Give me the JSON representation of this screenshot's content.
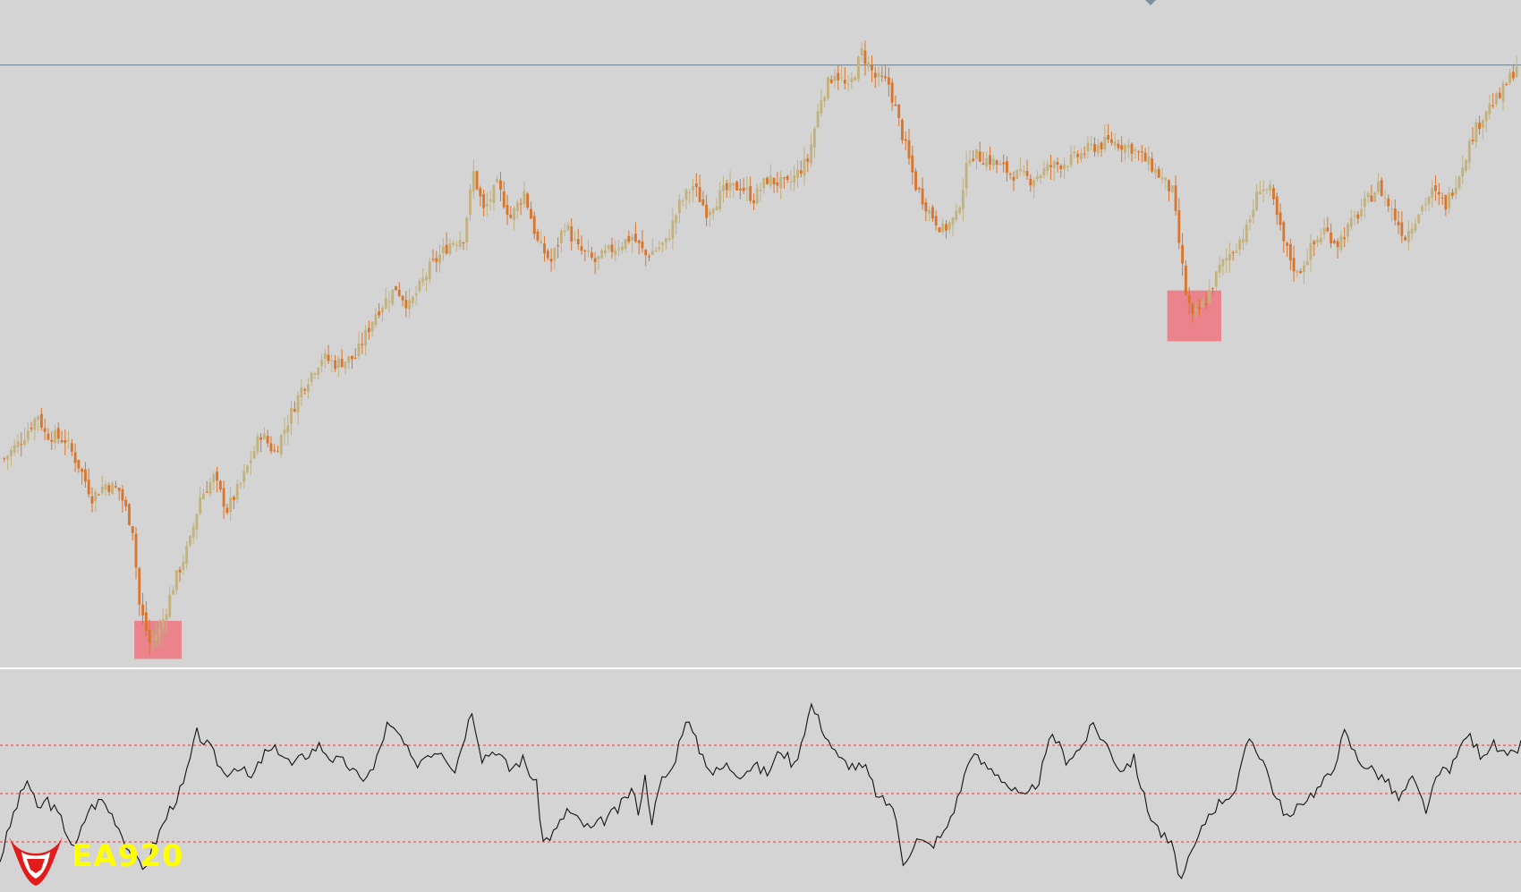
{
  "colors": {
    "background": "#d4d4d4",
    "bull_candle": "#c2b27e",
    "bear_candle": "#d9762e",
    "highlight_box": "#ec7a84",
    "panel_divider": "#ffffff",
    "resistance_line": "#7d8f9e",
    "oscillator_line": "#111111",
    "level_line": "#e03a3a",
    "logo_red": "#e21b1b",
    "logo_text": "#ffff00"
  },
  "logo": {
    "text": "EA920",
    "icon": "bull-head-icon"
  },
  "chart_data": [
    {
      "type": "candlestick",
      "title": "",
      "xlabel": "",
      "ylabel": "",
      "ylim": [
        0,
        100
      ],
      "grid": false,
      "horizontal_line": 94,
      "anchors": [
        {
          "i": 0,
          "v": 32
        },
        {
          "i": 5,
          "v": 35
        },
        {
          "i": 10,
          "v": 39
        },
        {
          "i": 12,
          "v": 36
        },
        {
          "i": 18,
          "v": 35
        },
        {
          "i": 22,
          "v": 31
        },
        {
          "i": 26,
          "v": 26
        },
        {
          "i": 30,
          "v": 28
        },
        {
          "i": 34,
          "v": 27
        },
        {
          "i": 38,
          "v": 21
        },
        {
          "i": 40,
          "v": 9
        },
        {
          "i": 43,
          "v": 3
        },
        {
          "i": 46,
          "v": 5
        },
        {
          "i": 50,
          "v": 12
        },
        {
          "i": 55,
          "v": 19
        },
        {
          "i": 58,
          "v": 26
        },
        {
          "i": 62,
          "v": 29
        },
        {
          "i": 66,
          "v": 24
        },
        {
          "i": 70,
          "v": 28
        },
        {
          "i": 76,
          "v": 36
        },
        {
          "i": 80,
          "v": 33
        },
        {
          "i": 84,
          "v": 38
        },
        {
          "i": 88,
          "v": 43
        },
        {
          "i": 94,
          "v": 48
        },
        {
          "i": 98,
          "v": 47
        },
        {
          "i": 104,
          "v": 48
        },
        {
          "i": 110,
          "v": 55
        },
        {
          "i": 116,
          "v": 59
        },
        {
          "i": 120,
          "v": 56
        },
        {
          "i": 126,
          "v": 62
        },
        {
          "i": 132,
          "v": 66
        },
        {
          "i": 136,
          "v": 67
        },
        {
          "i": 139,
          "v": 77
        },
        {
          "i": 142,
          "v": 71
        },
        {
          "i": 146,
          "v": 75
        },
        {
          "i": 150,
          "v": 70
        },
        {
          "i": 154,
          "v": 74
        },
        {
          "i": 158,
          "v": 66
        },
        {
          "i": 162,
          "v": 63
        },
        {
          "i": 166,
          "v": 69
        },
        {
          "i": 170,
          "v": 65
        },
        {
          "i": 175,
          "v": 63
        },
        {
          "i": 180,
          "v": 65
        },
        {
          "i": 186,
          "v": 67
        },
        {
          "i": 190,
          "v": 64
        },
        {
          "i": 196,
          "v": 66
        },
        {
          "i": 200,
          "v": 72
        },
        {
          "i": 204,
          "v": 75
        },
        {
          "i": 208,
          "v": 71
        },
        {
          "i": 213,
          "v": 74
        },
        {
          "i": 218,
          "v": 75
        },
        {
          "i": 222,
          "v": 73
        },
        {
          "i": 226,
          "v": 76
        },
        {
          "i": 232,
          "v": 75
        },
        {
          "i": 238,
          "v": 79
        },
        {
          "i": 242,
          "v": 89
        },
        {
          "i": 246,
          "v": 93
        },
        {
          "i": 250,
          "v": 90
        },
        {
          "i": 254,
          "v": 96
        },
        {
          "i": 258,
          "v": 92
        },
        {
          "i": 262,
          "v": 91
        },
        {
          "i": 266,
          "v": 83
        },
        {
          "i": 270,
          "v": 75
        },
        {
          "i": 274,
          "v": 71
        },
        {
          "i": 278,
          "v": 68
        },
        {
          "i": 282,
          "v": 70
        },
        {
          "i": 286,
          "v": 80
        },
        {
          "i": 292,
          "v": 79
        },
        {
          "i": 298,
          "v": 77
        },
        {
          "i": 304,
          "v": 76
        },
        {
          "i": 310,
          "v": 78
        },
        {
          "i": 316,
          "v": 79
        },
        {
          "i": 322,
          "v": 81
        },
        {
          "i": 328,
          "v": 82
        },
        {
          "i": 334,
          "v": 81
        },
        {
          "i": 340,
          "v": 78
        },
        {
          "i": 346,
          "v": 74
        },
        {
          "i": 350,
          "v": 58
        },
        {
          "i": 352,
          "v": 54
        },
        {
          "i": 356,
          "v": 57
        },
        {
          "i": 360,
          "v": 62
        },
        {
          "i": 364,
          "v": 65
        },
        {
          "i": 368,
          "v": 68
        },
        {
          "i": 372,
          "v": 75
        },
        {
          "i": 375,
          "v": 74
        },
        {
          "i": 379,
          "v": 66
        },
        {
          "i": 383,
          "v": 61
        },
        {
          "i": 387,
          "v": 65
        },
        {
          "i": 391,
          "v": 68
        },
        {
          "i": 395,
          "v": 66
        },
        {
          "i": 399,
          "v": 69
        },
        {
          "i": 403,
          "v": 72
        },
        {
          "i": 407,
          "v": 75
        },
        {
          "i": 411,
          "v": 71
        },
        {
          "i": 415,
          "v": 67
        },
        {
          "i": 419,
          "v": 71
        },
        {
          "i": 423,
          "v": 74
        },
        {
          "i": 427,
          "v": 72
        },
        {
          "i": 431,
          "v": 77
        },
        {
          "i": 435,
          "v": 83
        },
        {
          "i": 439,
          "v": 87
        },
        {
          "i": 443,
          "v": 89
        },
        {
          "i": 448,
          "v": 94
        }
      ],
      "highlights": [
        {
          "from_index": 39,
          "to_index": 52,
          "low": 0.5,
          "high": 6.5
        },
        {
          "from_index": 345,
          "to_index": 360,
          "low": 50.5,
          "high": 58.5
        }
      ]
    },
    {
      "type": "line",
      "title": "",
      "xlabel": "",
      "ylabel": "",
      "ylim": [
        0,
        100
      ],
      "levels": [
        24,
        48,
        72
      ],
      "anchors": [
        {
          "i": 0,
          "v": 15
        },
        {
          "i": 4,
          "v": 38
        },
        {
          "i": 8,
          "v": 55
        },
        {
          "i": 11,
          "v": 40
        },
        {
          "i": 14,
          "v": 45
        },
        {
          "i": 18,
          "v": 35
        },
        {
          "i": 22,
          "v": 20
        },
        {
          "i": 26,
          "v": 40
        },
        {
          "i": 30,
          "v": 45
        },
        {
          "i": 34,
          "v": 35
        },
        {
          "i": 38,
          "v": 20
        },
        {
          "i": 42,
          "v": 10
        },
        {
          "i": 46,
          "v": 25
        },
        {
          "i": 50,
          "v": 40
        },
        {
          "i": 54,
          "v": 52
        },
        {
          "i": 58,
          "v": 78
        },
        {
          "i": 62,
          "v": 70
        },
        {
          "i": 66,
          "v": 58
        },
        {
          "i": 70,
          "v": 62
        },
        {
          "i": 74,
          "v": 55
        },
        {
          "i": 78,
          "v": 68
        },
        {
          "i": 82,
          "v": 70
        },
        {
          "i": 86,
          "v": 62
        },
        {
          "i": 90,
          "v": 67
        },
        {
          "i": 94,
          "v": 72
        },
        {
          "i": 98,
          "v": 65
        },
        {
          "i": 102,
          "v": 63
        },
        {
          "i": 106,
          "v": 55
        },
        {
          "i": 110,
          "v": 60
        },
        {
          "i": 114,
          "v": 82
        },
        {
          "i": 118,
          "v": 76
        },
        {
          "i": 122,
          "v": 62
        },
        {
          "i": 126,
          "v": 68
        },
        {
          "i": 130,
          "v": 70
        },
        {
          "i": 134,
          "v": 60
        },
        {
          "i": 139,
          "v": 90
        },
        {
          "i": 142,
          "v": 66
        },
        {
          "i": 146,
          "v": 70
        },
        {
          "i": 150,
          "v": 60
        },
        {
          "i": 154,
          "v": 65
        },
        {
          "i": 158,
          "v": 52
        },
        {
          "i": 160,
          "v": 24
        },
        {
          "i": 164,
          "v": 30
        },
        {
          "i": 167,
          "v": 40
        },
        {
          "i": 170,
          "v": 35
        },
        {
          "i": 174,
          "v": 30
        },
        {
          "i": 178,
          "v": 35
        },
        {
          "i": 182,
          "v": 40
        },
        {
          "i": 186,
          "v": 50
        },
        {
          "i": 188,
          "v": 40
        },
        {
          "i": 190,
          "v": 56
        },
        {
          "i": 192,
          "v": 35
        },
        {
          "i": 195,
          "v": 55
        },
        {
          "i": 198,
          "v": 60
        },
        {
          "i": 202,
          "v": 86
        },
        {
          "i": 206,
          "v": 70
        },
        {
          "i": 210,
          "v": 58
        },
        {
          "i": 214,
          "v": 62
        },
        {
          "i": 218,
          "v": 58
        },
        {
          "i": 222,
          "v": 62
        },
        {
          "i": 226,
          "v": 58
        },
        {
          "i": 230,
          "v": 70
        },
        {
          "i": 234,
          "v": 62
        },
        {
          "i": 239,
          "v": 92
        },
        {
          "i": 243,
          "v": 78
        },
        {
          "i": 247,
          "v": 65
        },
        {
          "i": 251,
          "v": 62
        },
        {
          "i": 255,
          "v": 60
        },
        {
          "i": 259,
          "v": 45
        },
        {
          "i": 263,
          "v": 42
        },
        {
          "i": 266,
          "v": 14
        },
        {
          "i": 270,
          "v": 25
        },
        {
          "i": 274,
          "v": 22
        },
        {
          "i": 278,
          "v": 28
        },
        {
          "i": 282,
          "v": 45
        },
        {
          "i": 286,
          "v": 68
        },
        {
          "i": 290,
          "v": 62
        },
        {
          "i": 294,
          "v": 58
        },
        {
          "i": 298,
          "v": 50
        },
        {
          "i": 302,
          "v": 45
        },
        {
          "i": 306,
          "v": 55
        },
        {
          "i": 310,
          "v": 78
        },
        {
          "i": 314,
          "v": 65
        },
        {
          "i": 318,
          "v": 70
        },
        {
          "i": 322,
          "v": 82
        },
        {
          "i": 326,
          "v": 72
        },
        {
          "i": 330,
          "v": 60
        },
        {
          "i": 334,
          "v": 65
        },
        {
          "i": 338,
          "v": 40
        },
        {
          "i": 342,
          "v": 28
        },
        {
          "i": 345,
          "v": 22
        },
        {
          "i": 348,
          "v": 5
        },
        {
          "i": 352,
          "v": 22
        },
        {
          "i": 356,
          "v": 38
        },
        {
          "i": 360,
          "v": 45
        },
        {
          "i": 364,
          "v": 50
        },
        {
          "i": 368,
          "v": 76
        },
        {
          "i": 372,
          "v": 65
        },
        {
          "i": 376,
          "v": 45
        },
        {
          "i": 380,
          "v": 35
        },
        {
          "i": 384,
          "v": 45
        },
        {
          "i": 388,
          "v": 50
        },
        {
          "i": 392,
          "v": 58
        },
        {
          "i": 396,
          "v": 78
        },
        {
          "i": 400,
          "v": 65
        },
        {
          "i": 404,
          "v": 60
        },
        {
          "i": 408,
          "v": 55
        },
        {
          "i": 412,
          "v": 45
        },
        {
          "i": 416,
          "v": 55
        },
        {
          "i": 420,
          "v": 40
        },
        {
          "i": 424,
          "v": 58
        },
        {
          "i": 428,
          "v": 62
        },
        {
          "i": 432,
          "v": 78
        },
        {
          "i": 436,
          "v": 68
        },
        {
          "i": 440,
          "v": 72
        },
        {
          "i": 444,
          "v": 65
        },
        {
          "i": 448,
          "v": 72
        }
      ]
    }
  ]
}
